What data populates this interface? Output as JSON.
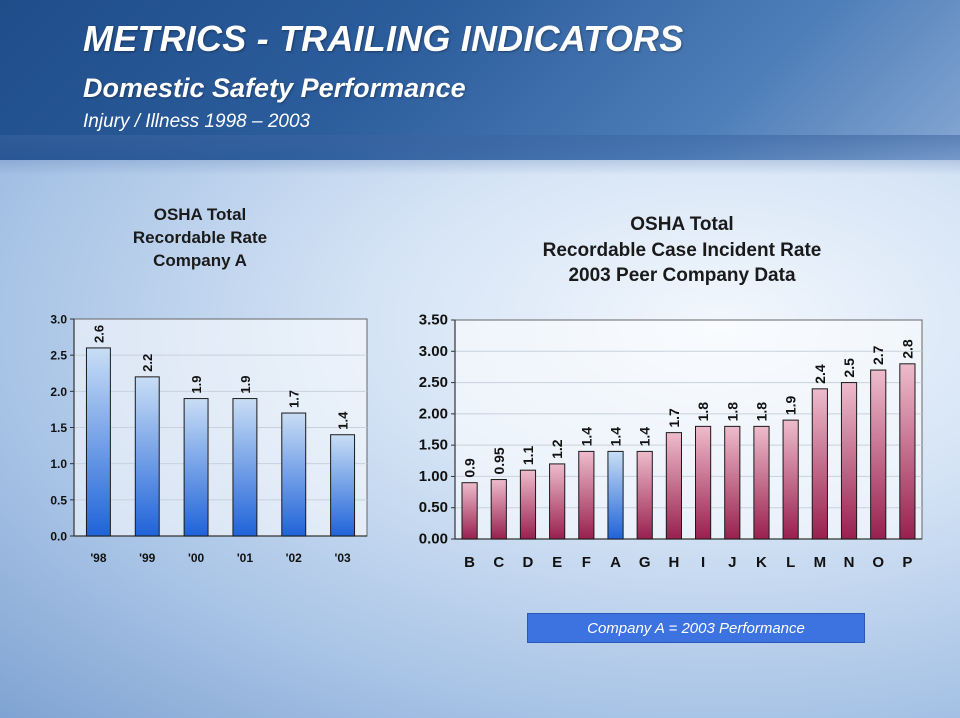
{
  "header": {
    "title": "METRICS - TRAILING INDICATORS",
    "subtitle": "Domestic Safety Performance",
    "subsubtitle": "Injury / Illness  1998 – 2003"
  },
  "legend_note": "Company A = 2003 Performance",
  "colors": {
    "left_bar_top": "#c9def5",
    "left_bar_bottom": "#1f63d9",
    "right_bar_top": "#eebccc",
    "right_bar_bottom": "#98204e",
    "highlight_top": "#c9def5",
    "highlight_bottom": "#1f63d9"
  },
  "chart_data": [
    {
      "type": "bar",
      "title_lines": [
        "OSHA Total",
        "Recordable Rate",
        "Company A"
      ],
      "categories": [
        "'98",
        "'99",
        "'00",
        "'01",
        "'02",
        "'03"
      ],
      "values": [
        2.6,
        2.2,
        1.9,
        1.9,
        1.7,
        1.4
      ],
      "value_labels": [
        "2.6",
        "2.2",
        "1.9",
        "1.9",
        "1.7",
        "1.4"
      ],
      "ylim": [
        0,
        3.0
      ],
      "yticks": [
        "0.0",
        "0.5",
        "1.0",
        "1.5",
        "2.0",
        "2.5",
        "3.0"
      ],
      "xlabel": "",
      "ylabel": ""
    },
    {
      "type": "bar",
      "title_lines": [
        "OSHA Total",
        "Recordable Case Incident Rate",
        "2003 Peer Company Data"
      ],
      "categories": [
        "B",
        "C",
        "D",
        "E",
        "F",
        "A",
        "G",
        "H",
        "I",
        "J",
        "K",
        "L",
        "M",
        "N",
        "O",
        "P"
      ],
      "values": [
        0.9,
        0.95,
        1.1,
        1.2,
        1.4,
        1.4,
        1.4,
        1.7,
        1.8,
        1.8,
        1.8,
        1.9,
        2.4,
        2.5,
        2.7,
        2.8
      ],
      "value_labels": [
        "0.9",
        "0.95",
        "1.1",
        "1.2",
        "1.4",
        "1.4",
        "1.4",
        "1.7",
        "1.8",
        "1.8",
        "1.8",
        "1.9",
        "2.4",
        "2.5",
        "2.7",
        "2.8"
      ],
      "highlight_category": "A",
      "ylim": [
        0,
        3.5
      ],
      "yticks": [
        "0.00",
        "0.50",
        "1.00",
        "1.50",
        "2.00",
        "2.50",
        "3.00",
        "3.50"
      ],
      "xlabel": "",
      "ylabel": ""
    }
  ]
}
